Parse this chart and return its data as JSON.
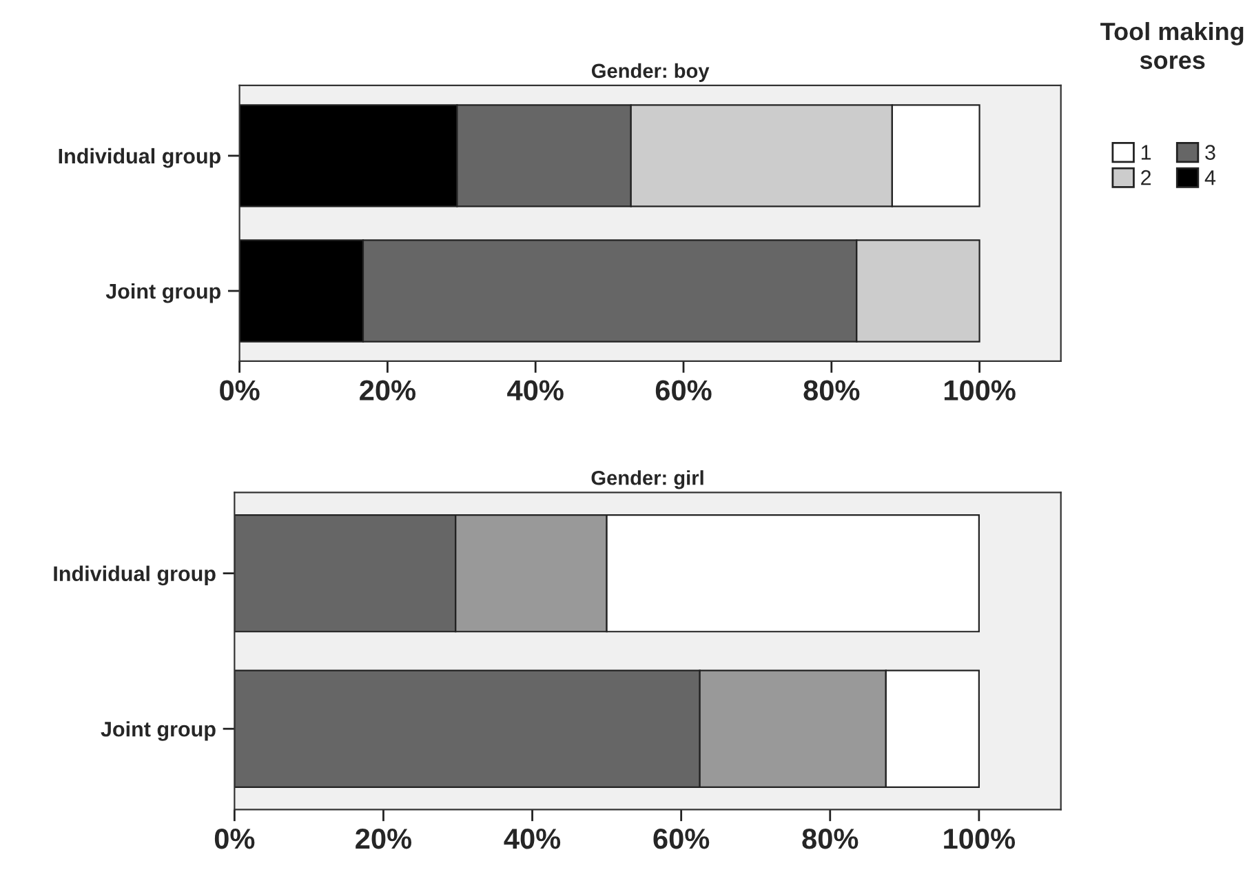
{
  "chart_data": [
    {
      "type": "bar",
      "orientation": "horizontal",
      "stacked": true,
      "title": "Gender: boy",
      "categories": [
        "Individual group",
        "Joint group"
      ],
      "series": [
        {
          "name": "4",
          "color": "#000000",
          "values": [
            29.4,
            16.7
          ]
        },
        {
          "name": "3",
          "color": "#666666",
          "values": [
            23.5,
            66.7
          ]
        },
        {
          "name": "2",
          "color": "#cccccc",
          "values": [
            35.3,
            16.6
          ]
        },
        {
          "name": "1",
          "color": "#ffffff",
          "values": [
            11.8,
            null
          ]
        }
      ],
      "xlim": [
        0,
        111
      ],
      "xticks": [
        {
          "value": 0,
          "label": "0%"
        },
        {
          "value": 20,
          "label": "20%"
        },
        {
          "value": 40,
          "label": "40%"
        },
        {
          "value": 60,
          "label": "60%"
        },
        {
          "value": 80,
          "label": "80%"
        },
        {
          "value": 100,
          "label": "100%"
        }
      ],
      "legend": "right",
      "legend_title": "Tool making sores",
      "grid": false
    },
    {
      "type": "bar",
      "orientation": "horizontal",
      "stacked": true,
      "title": "Gender: girl",
      "categories": [
        "Individual group",
        "Joint group"
      ],
      "series": [
        {
          "color": "#666666",
          "values": [
            29.7,
            62.5
          ]
        },
        {
          "color": "#999999",
          "values": [
            20.3,
            25.0
          ]
        },
        {
          "color": "#ffffff",
          "values": [
            50.0,
            12.5
          ]
        }
      ],
      "xlim": [
        0,
        111
      ],
      "xticks": [
        {
          "value": 0,
          "label": "0%"
        },
        {
          "value": 20,
          "label": "20%"
        },
        {
          "value": 40,
          "label": "40%"
        },
        {
          "value": 60,
          "label": "60%"
        },
        {
          "value": 80,
          "label": "80%"
        },
        {
          "value": 100,
          "label": "100%"
        }
      ],
      "legend": false,
      "grid": false
    }
  ]
}
